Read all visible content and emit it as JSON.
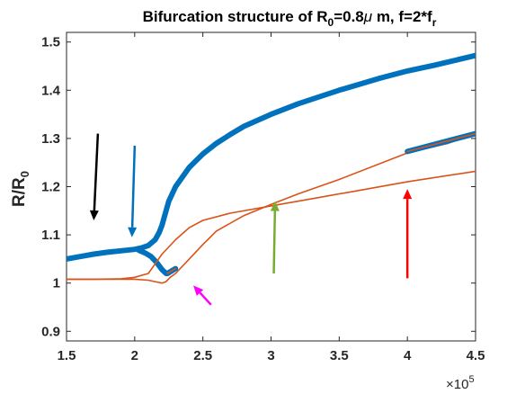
{
  "chart_data": {
    "type": "line",
    "title": {
      "prefix": "Bifurcation structure  of R",
      "sub": "0",
      "middle": "=0.8",
      "mu": "μ",
      "suffix": " m, f=2*f",
      "sub2": "r"
    },
    "ylabel": {
      "main": "R/R",
      "sub": "0"
    },
    "x_multiplier": {
      "base": "×10",
      "exp": "5"
    },
    "xlim": [
      1.5,
      4.5
    ],
    "ylim": [
      0.88,
      1.52
    ],
    "xticks": [
      1.5,
      2,
      2.5,
      3,
      3.5,
      4,
      4.5
    ],
    "xtick_labels": [
      "1.5",
      "2",
      "2.5",
      "3",
      "3.5",
      "4",
      "4.5"
    ],
    "yticks": [
      0.9,
      1.0,
      1.1,
      1.2,
      1.3,
      1.4,
      1.5
    ],
    "ytick_labels": [
      "0.9",
      "1",
      "1.1",
      "1.2",
      "1.3",
      "1.4",
      "1.5"
    ],
    "grid": false,
    "colors": {
      "stable": "#0072BD",
      "unstable": "#D95319",
      "axis": "#262626"
    },
    "series": [
      {
        "style": "stable-thick",
        "x": [
          1.5,
          1.6,
          1.7,
          1.8,
          1.9,
          2.0,
          2.05,
          2.1,
          2.15,
          2.18,
          2.2,
          2.22,
          2.25,
          2.3,
          2.4,
          2.5,
          2.6,
          2.7,
          2.8,
          3.0,
          3.2,
          3.5,
          3.8,
          4.0,
          4.2,
          4.5
        ],
        "y": [
          1.05,
          1.055,
          1.06,
          1.064,
          1.067,
          1.07,
          1.073,
          1.078,
          1.09,
          1.105,
          1.12,
          1.14,
          1.17,
          1.2,
          1.24,
          1.268,
          1.29,
          1.308,
          1.325,
          1.35,
          1.372,
          1.4,
          1.425,
          1.44,
          1.452,
          1.472
        ]
      },
      {
        "style": "stable-thick",
        "x": [
          2.03,
          2.08,
          2.12,
          2.16,
          2.2,
          2.23
        ],
        "y": [
          1.068,
          1.062,
          1.055,
          1.043,
          1.028,
          1.02
        ]
      },
      {
        "style": "unstable-on-stable",
        "x": [
          2.24,
          2.3
        ],
        "y": [
          1.02,
          1.03
        ]
      },
      {
        "style": "unstable-on-stable",
        "x": [
          4.0,
          4.5
        ],
        "y": [
          1.273,
          1.31
        ]
      },
      {
        "style": "unstable",
        "x": [
          1.5,
          1.7,
          1.9,
          2.0,
          2.1,
          2.15,
          2.2,
          2.25,
          2.3,
          2.4,
          2.5,
          2.7,
          3.0,
          3.3,
          3.6,
          4.0,
          4.5
        ],
        "y": [
          1.008,
          1.008,
          1.009,
          1.012,
          1.02,
          1.04,
          1.06,
          1.075,
          1.09,
          1.115,
          1.13,
          1.145,
          1.16,
          1.175,
          1.19,
          1.21,
          1.232
        ]
      },
      {
        "style": "unstable",
        "x": [
          1.5,
          1.8,
          2.0,
          2.1,
          2.15,
          2.2,
          2.23,
          2.26,
          2.3,
          2.4,
          2.5,
          2.6,
          2.8,
          3.0,
          3.2,
          3.5,
          4.0,
          4.3,
          4.5
        ],
        "y": [
          1.008,
          1.008,
          1.008,
          1.006,
          1.003,
          1.0,
          1.003,
          1.012,
          1.02,
          1.05,
          1.08,
          1.108,
          1.14,
          1.163,
          1.185,
          1.215,
          1.27,
          1.29,
          1.31
        ]
      }
    ],
    "annotations": [
      {
        "type": "arrow",
        "color": "#000000",
        "from": [
          1.73,
          1.31
        ],
        "to": [
          1.7,
          1.13
        ]
      },
      {
        "type": "arrow",
        "color": "#0072BD",
        "from": [
          2.0,
          1.285
        ],
        "to": [
          1.98,
          1.095
        ]
      },
      {
        "type": "arrow",
        "color": "#FF00FF",
        "from": [
          2.56,
          0.955
        ],
        "to": [
          2.43,
          0.995
        ]
      },
      {
        "type": "arrow",
        "color": "#77AC30",
        "from": [
          3.02,
          1.02
        ],
        "to": [
          3.03,
          1.17
        ]
      },
      {
        "type": "arrow",
        "color": "#FF0000",
        "from": [
          4.0,
          1.01
        ],
        "to": [
          4.0,
          1.195
        ]
      }
    ]
  }
}
